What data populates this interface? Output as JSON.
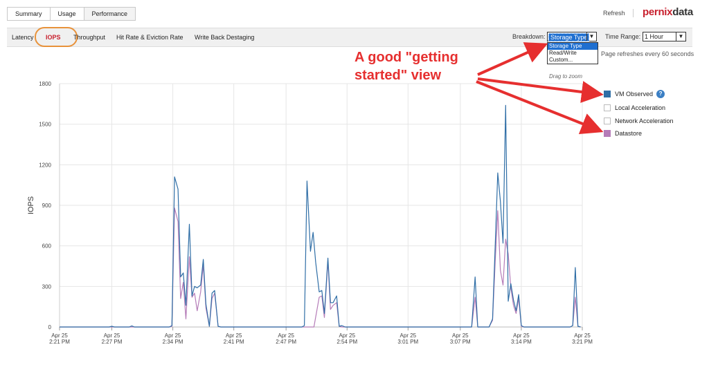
{
  "top_tabs": [
    {
      "label": "Summary"
    },
    {
      "label": "Usage"
    },
    {
      "label": "Performance"
    }
  ],
  "header": {
    "refresh_label": "Refresh",
    "logo_part1": "pernix",
    "logo_part2": "data"
  },
  "sub_tabs": [
    {
      "label": "Latency"
    },
    {
      "label": "IOPS"
    },
    {
      "label": "Throughput"
    },
    {
      "label": "Hit Rate & Eviction Rate"
    },
    {
      "label": "Write Back Destaging"
    }
  ],
  "controls": {
    "breakdown_label": "Breakdown:",
    "breakdown_value": "Storage Type",
    "breakdown_options": [
      "Storage Type",
      "Read/Write",
      "Custom..."
    ],
    "time_range_label": "Time Range:",
    "time_range_value": "1 Hour",
    "refresh_note": "Page refreshes every 60 seconds"
  },
  "drag_hint": "Drag to zoom",
  "legend": [
    {
      "label": "VM Observed",
      "color": "#2f6ea6",
      "checked": true,
      "help": "?"
    },
    {
      "label": "Local Acceleration",
      "color": "#ffffff",
      "checked": false
    },
    {
      "label": "Network Acceleration",
      "color": "#ffffff",
      "checked": false
    },
    {
      "label": "Datastore",
      "color": "#b57cb8",
      "checked": true
    }
  ],
  "annotation": {
    "line1": "A good \"getting",
    "line2": "started\" view"
  },
  "colors": {
    "vm_observed": "#2f6ea6",
    "datastore": "#b57cb8",
    "accent": "#c81f2d",
    "annotation": "#e62f2f",
    "highlight": "#e8923a"
  },
  "chart_data": {
    "type": "line",
    "ylabel": "IOPS",
    "ylim": [
      0,
      1800
    ],
    "yticks": [
      0,
      300,
      600,
      900,
      1200,
      1500,
      1800
    ],
    "xlim": [
      0,
      60
    ],
    "xticks": [
      {
        "x": 0,
        "date": "Apr 25",
        "time": "2:21 PM"
      },
      {
        "x": 6,
        "date": "Apr 25",
        "time": "2:27 PM"
      },
      {
        "x": 13,
        "date": "Apr 25",
        "time": "2:34 PM"
      },
      {
        "x": 20,
        "date": "Apr 25",
        "time": "2:41 PM"
      },
      {
        "x": 26,
        "date": "Apr 25",
        "time": "2:47 PM"
      },
      {
        "x": 33,
        "date": "Apr 25",
        "time": "2:54 PM"
      },
      {
        "x": 40,
        "date": "Apr 25",
        "time": "3:01 PM"
      },
      {
        "x": 46,
        "date": "Apr 25",
        "time": "3:07 PM"
      },
      {
        "x": 53,
        "date": "Apr 25",
        "time": "3:14 PM"
      },
      {
        "x": 60,
        "date": "Apr 25",
        "time": "3:21 PM"
      }
    ],
    "grid": true,
    "series": [
      {
        "name": "VM Observed",
        "color": "#2f6ea6",
        "points": [
          [
            0,
            0
          ],
          [
            5.7,
            0
          ],
          [
            6,
            5
          ],
          [
            6.3,
            0
          ],
          [
            8,
            0
          ],
          [
            8.3,
            8
          ],
          [
            8.6,
            0
          ],
          [
            12.6,
            0
          ],
          [
            12.9,
            10
          ],
          [
            13.2,
            1110
          ],
          [
            13.6,
            1020
          ],
          [
            13.9,
            370
          ],
          [
            14.2,
            400
          ],
          [
            14.5,
            160
          ],
          [
            14.9,
            760
          ],
          [
            15.2,
            230
          ],
          [
            15.5,
            300
          ],
          [
            15.8,
            290
          ],
          [
            16.2,
            310
          ],
          [
            16.5,
            500
          ],
          [
            16.8,
            170
          ],
          [
            17.2,
            5
          ],
          [
            17.5,
            250
          ],
          [
            17.8,
            270
          ],
          [
            18.2,
            5
          ],
          [
            18.5,
            0
          ],
          [
            27.8,
            0
          ],
          [
            28.1,
            10
          ],
          [
            28.4,
            1080
          ],
          [
            28.8,
            560
          ],
          [
            29.1,
            700
          ],
          [
            29.4,
            480
          ],
          [
            29.8,
            260
          ],
          [
            30.1,
            270
          ],
          [
            30.4,
            100
          ],
          [
            30.8,
            510
          ],
          [
            31.1,
            180
          ],
          [
            31.4,
            180
          ],
          [
            31.8,
            230
          ],
          [
            32.1,
            5
          ],
          [
            32.4,
            10
          ],
          [
            32.8,
            0
          ],
          [
            47.3,
            0
          ],
          [
            47.7,
            370
          ],
          [
            48,
            0
          ],
          [
            49.3,
            0
          ],
          [
            49.7,
            60
          ],
          [
            50,
            600
          ],
          [
            50.3,
            1140
          ],
          [
            50.6,
            930
          ],
          [
            50.9,
            620
          ],
          [
            51.2,
            1640
          ],
          [
            51.5,
            190
          ],
          [
            51.8,
            320
          ],
          [
            52.1,
            200
          ],
          [
            52.4,
            120
          ],
          [
            52.7,
            240
          ],
          [
            53,
            10
          ],
          [
            53.3,
            0
          ],
          [
            58.6,
            0
          ],
          [
            58.9,
            10
          ],
          [
            59.2,
            440
          ],
          [
            59.5,
            5
          ],
          [
            59.8,
            0
          ]
        ]
      },
      {
        "name": "Datastore",
        "color": "#b57cb8",
        "points": [
          [
            0,
            0
          ],
          [
            12.6,
            0
          ],
          [
            12.9,
            5
          ],
          [
            13.2,
            880
          ],
          [
            13.6,
            780
          ],
          [
            13.9,
            210
          ],
          [
            14.2,
            330
          ],
          [
            14.5,
            60
          ],
          [
            14.9,
            520
          ],
          [
            15.2,
            220
          ],
          [
            15.5,
            250
          ],
          [
            15.8,
            120
          ],
          [
            16.2,
            260
          ],
          [
            16.5,
            460
          ],
          [
            16.8,
            140
          ],
          [
            17.2,
            5
          ],
          [
            17.5,
            210
          ],
          [
            17.8,
            250
          ],
          [
            18.2,
            5
          ],
          [
            18.5,
            0
          ],
          [
            29.2,
            0
          ],
          [
            29.8,
            220
          ],
          [
            30.1,
            230
          ],
          [
            30.4,
            70
          ],
          [
            30.8,
            490
          ],
          [
            31.1,
            130
          ],
          [
            31.4,
            160
          ],
          [
            31.8,
            180
          ],
          [
            32.1,
            5
          ],
          [
            32.4,
            0
          ],
          [
            47.3,
            0
          ],
          [
            47.7,
            220
          ],
          [
            48,
            0
          ],
          [
            49.3,
            0
          ],
          [
            49.7,
            50
          ],
          [
            50,
            480
          ],
          [
            50.3,
            860
          ],
          [
            50.6,
            420
          ],
          [
            50.9,
            310
          ],
          [
            51.2,
            650
          ],
          [
            51.5,
            540
          ],
          [
            51.8,
            290
          ],
          [
            52.1,
            160
          ],
          [
            52.4,
            100
          ],
          [
            52.7,
            210
          ],
          [
            53,
            5
          ],
          [
            53.3,
            0
          ],
          [
            58.6,
            0
          ],
          [
            58.9,
            10
          ],
          [
            59.2,
            220
          ],
          [
            59.5,
            5
          ],
          [
            59.8,
            0
          ]
        ]
      }
    ]
  }
}
